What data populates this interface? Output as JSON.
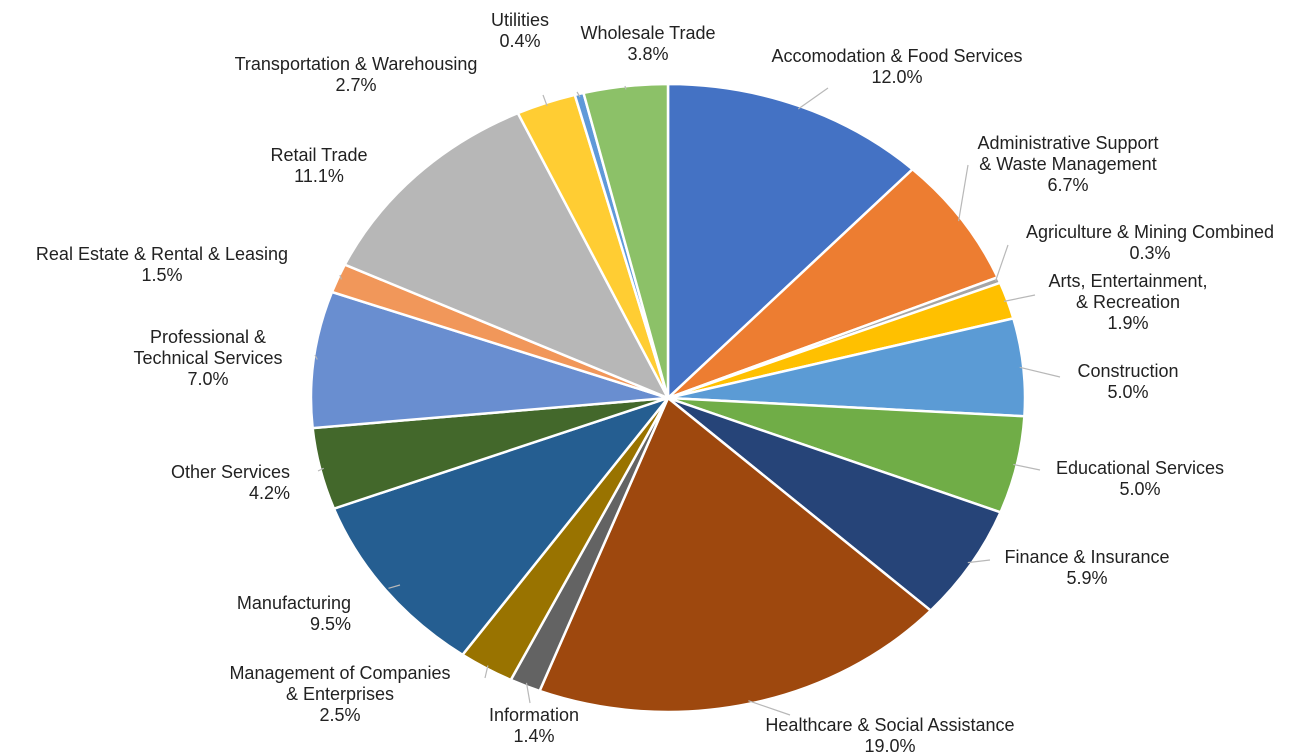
{
  "chart_data": {
    "type": "pie",
    "title": "",
    "start_angle_deg": 0,
    "direction": "clockwise",
    "slices": [
      {
        "name": "Accomodation & Food Services",
        "value": 12.0,
        "label": "12.0%",
        "color": "#4472C4"
      },
      {
        "name": "Administrative Support & Waste Management",
        "value": 6.7,
        "label": "6.7%",
        "color": "#ED7D31"
      },
      {
        "name": "Agriculture & Mining Combined",
        "value": 0.3,
        "label": "0.3%",
        "color": "#A5A5A5"
      },
      {
        "name": "Arts, Entertainment, & Recreation",
        "value": 1.9,
        "label": "1.9%",
        "color": "#FFC000"
      },
      {
        "name": "Construction",
        "value": 5.0,
        "label": "5.0%",
        "color": "#5B9BD5"
      },
      {
        "name": "Educational Services",
        "value": 5.0,
        "label": "5.0%",
        "color": "#70AD47"
      },
      {
        "name": "Finance & Insurance",
        "value": 5.9,
        "label": "5.9%",
        "color": "#264478"
      },
      {
        "name": "Healthcare & Social Assistance",
        "value": 19.0,
        "label": "19.0%",
        "color": "#9E480E"
      },
      {
        "name": "Information",
        "value": 1.4,
        "label": "1.4%",
        "color": "#636363"
      },
      {
        "name": "Management of Companies & Enterprises",
        "value": 2.5,
        "label": "2.5%",
        "color": "#997300"
      },
      {
        "name": "Manufacturing",
        "value": 9.5,
        "label": "9.5%",
        "color": "#255E91"
      },
      {
        "name": "Other Services",
        "value": 4.2,
        "label": "4.2%",
        "color": "#43682B"
      },
      {
        "name": "Professional & Technical Services",
        "value": 7.0,
        "label": "7.0%",
        "color": "#698ED0"
      },
      {
        "name": "Real Estate & Rental & Leasing",
        "value": 1.5,
        "label": "1.5%",
        "color": "#F1975A"
      },
      {
        "name": "Retail Trade",
        "value": 11.1,
        "label": "11.1%",
        "color": "#B7B7B7"
      },
      {
        "name": "Transportation & Warehousing",
        "value": 2.7,
        "label": "2.7%",
        "color": "#FFCD33"
      },
      {
        "name": "Utilities",
        "value": 0.4,
        "label": "0.4%",
        "color": "#5F99D9"
      },
      {
        "name": "Wholesale Trade",
        "value": 3.8,
        "label": "3.8%",
        "color": "#8CC168"
      }
    ]
  }
}
